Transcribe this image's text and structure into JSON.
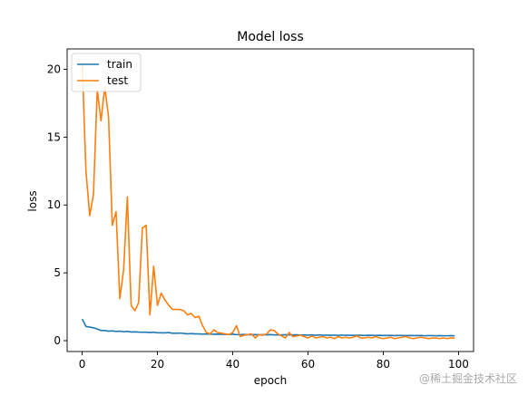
{
  "chart_data": {
    "type": "line",
    "title": "Model loss",
    "xlabel": "epoch",
    "ylabel": "loss",
    "xlim": [
      -4,
      104
    ],
    "ylim": [
      -0.8,
      21.5
    ],
    "xticks": [
      0,
      20,
      40,
      60,
      80,
      100
    ],
    "yticks": [
      0,
      5,
      10,
      15,
      20
    ],
    "grid": false,
    "legend_position": "top-left",
    "series": [
      {
        "name": "train",
        "color": "#1f77b4",
        "x": [
          0,
          1,
          2,
          3,
          4,
          5,
          6,
          7,
          8,
          9,
          10,
          11,
          12,
          13,
          14,
          15,
          16,
          17,
          18,
          19,
          20,
          21,
          22,
          23,
          24,
          25,
          26,
          27,
          28,
          29,
          30,
          31,
          32,
          33,
          34,
          35,
          36,
          37,
          38,
          39,
          40,
          41,
          42,
          43,
          44,
          45,
          46,
          47,
          48,
          49,
          50,
          51,
          52,
          53,
          54,
          55,
          56,
          57,
          58,
          59,
          60,
          61,
          62,
          63,
          64,
          65,
          66,
          67,
          68,
          69,
          70,
          71,
          72,
          73,
          74,
          75,
          76,
          77,
          78,
          79,
          80,
          81,
          82,
          83,
          84,
          85,
          86,
          87,
          88,
          89,
          90,
          91,
          92,
          93,
          94,
          95,
          96,
          97,
          98,
          99
        ],
        "values": [
          1.6,
          1.05,
          1.0,
          0.95,
          0.85,
          0.75,
          0.75,
          0.7,
          0.72,
          0.68,
          0.7,
          0.66,
          0.68,
          0.64,
          0.65,
          0.63,
          0.62,
          0.62,
          0.6,
          0.62,
          0.58,
          0.58,
          0.57,
          0.6,
          0.55,
          0.55,
          0.56,
          0.53,
          0.5,
          0.52,
          0.5,
          0.5,
          0.48,
          0.5,
          0.48,
          0.47,
          0.48,
          0.46,
          0.47,
          0.45,
          0.47,
          0.45,
          0.44,
          0.46,
          0.44,
          0.44,
          0.45,
          0.43,
          0.44,
          0.43,
          0.45,
          0.42,
          0.43,
          0.42,
          0.44,
          0.42,
          0.42,
          0.43,
          0.41,
          0.42,
          0.41,
          0.42,
          0.4,
          0.42,
          0.4,
          0.41,
          0.4,
          0.41,
          0.39,
          0.41,
          0.4,
          0.4,
          0.39,
          0.4,
          0.4,
          0.38,
          0.4,
          0.39,
          0.38,
          0.4,
          0.38,
          0.38,
          0.39,
          0.37,
          0.38,
          0.38,
          0.37,
          0.38,
          0.37,
          0.37,
          0.38,
          0.36,
          0.37,
          0.37,
          0.36,
          0.37,
          0.36,
          0.36,
          0.37,
          0.36
        ]
      },
      {
        "name": "test",
        "color": "#ff7f0e",
        "x": [
          0,
          1,
          2,
          3,
          4,
          5,
          6,
          7,
          8,
          9,
          10,
          11,
          12,
          13,
          14,
          15,
          16,
          17,
          18,
          19,
          20,
          21,
          22,
          23,
          24,
          25,
          26,
          27,
          28,
          29,
          30,
          31,
          32,
          33,
          34,
          35,
          36,
          37,
          38,
          39,
          40,
          41,
          42,
          43,
          44,
          45,
          46,
          47,
          48,
          49,
          50,
          51,
          52,
          53,
          54,
          55,
          56,
          57,
          58,
          59,
          60,
          61,
          62,
          63,
          64,
          65,
          66,
          67,
          68,
          69,
          70,
          71,
          72,
          73,
          74,
          75,
          76,
          77,
          78,
          79,
          80,
          81,
          82,
          83,
          84,
          85,
          86,
          87,
          88,
          89,
          90,
          91,
          92,
          93,
          94,
          95,
          96,
          97,
          98,
          99
        ],
        "values": [
          20.5,
          12.5,
          9.2,
          10.8,
          18.5,
          16.2,
          18.7,
          16.5,
          8.5,
          9.5,
          3.1,
          5.2,
          10.6,
          2.6,
          2.2,
          2.8,
          8.3,
          8.5,
          1.9,
          5.5,
          2.6,
          3.5,
          3.0,
          2.6,
          2.3,
          2.3,
          2.3,
          2.2,
          1.9,
          2.0,
          1.7,
          1.8,
          1.1,
          0.6,
          0.5,
          0.8,
          0.6,
          0.55,
          0.5,
          0.45,
          0.6,
          1.1,
          0.3,
          0.4,
          0.45,
          0.5,
          0.2,
          0.45,
          0.4,
          0.5,
          0.8,
          0.75,
          0.5,
          0.35,
          0.2,
          0.6,
          0.3,
          0.35,
          0.4,
          0.3,
          0.2,
          0.35,
          0.2,
          0.25,
          0.3,
          0.2,
          0.25,
          0.15,
          0.3,
          0.2,
          0.25,
          0.2,
          0.25,
          0.35,
          0.2,
          0.2,
          0.25,
          0.2,
          0.3,
          0.2,
          0.15,
          0.2,
          0.25,
          0.15,
          0.2,
          0.25,
          0.3,
          0.2,
          0.15,
          0.2,
          0.25,
          0.2,
          0.15,
          0.2,
          0.2,
          0.15,
          0.2,
          0.15,
          0.2,
          0.2
        ]
      }
    ]
  },
  "watermark": "@稀土掘金技术社区"
}
